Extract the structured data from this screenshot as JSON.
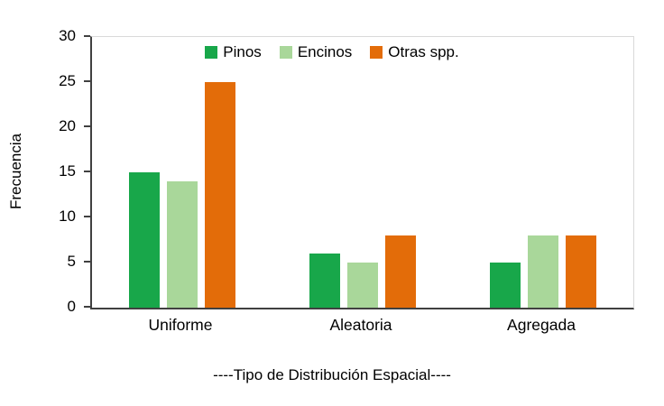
{
  "chart_data": {
    "type": "bar",
    "title": "",
    "categories": [
      "Uniforme",
      "Aleatoria",
      "Agregada"
    ],
    "series": [
      {
        "name": "Pinos",
        "color": "#18a74a",
        "values": [
          15,
          6,
          5
        ]
      },
      {
        "name": "Encinos",
        "color": "#a9d79a",
        "values": [
          14,
          5,
          8
        ]
      },
      {
        "name": "Otras spp.",
        "color": "#e36c09",
        "values": [
          25,
          8,
          8
        ]
      }
    ],
    "xlabel": "----Tipo de Distribución Espacial----",
    "ylabel": "Frecuencia",
    "ylim": [
      0,
      30
    ],
    "yticks": [
      0,
      5,
      10,
      15,
      20,
      25,
      30
    ],
    "legend_position": "top-center",
    "grid": false,
    "axis_color": "#404040"
  }
}
